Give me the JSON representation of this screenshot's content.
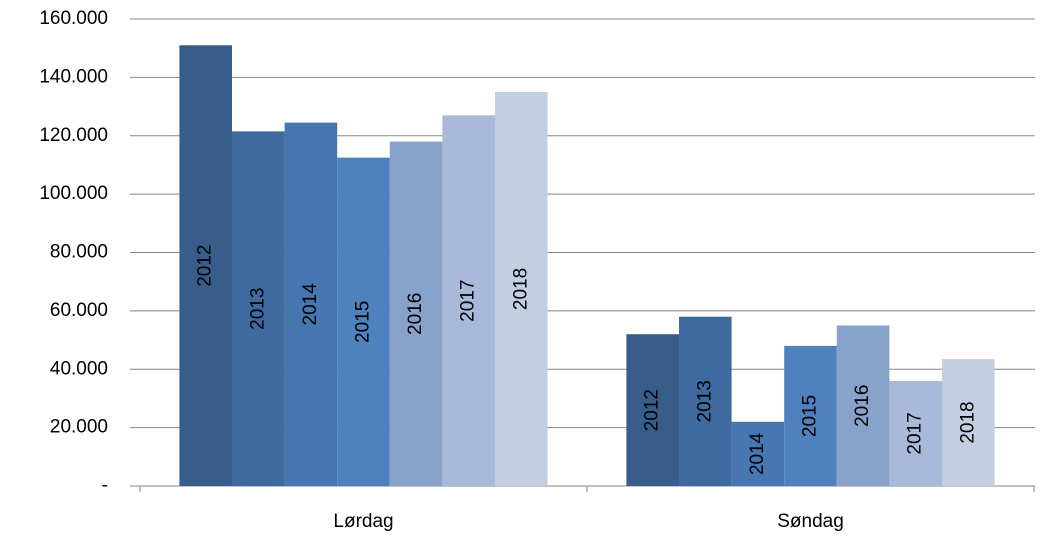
{
  "chart_data": {
    "type": "bar",
    "categories": [
      "Lørdag",
      "Søndag"
    ],
    "series": [
      {
        "name": "2012",
        "color": "#395d8a",
        "values": [
          151000,
          52000
        ]
      },
      {
        "name": "2013",
        "color": "#3e6aa0",
        "values": [
          121500,
          58000
        ]
      },
      {
        "name": "2014",
        "color": "#4677b0",
        "values": [
          124500,
          22000
        ]
      },
      {
        "name": "2015",
        "color": "#4f81bd",
        "values": [
          112500,
          48000
        ]
      },
      {
        "name": "2016",
        "color": "#87a2cb",
        "values": [
          118000,
          55000
        ]
      },
      {
        "name": "2017",
        "color": "#a9b9d9",
        "values": [
          127000,
          36000
        ]
      },
      {
        "name": "2018",
        "color": "#c3cee3",
        "values": [
          135000,
          43500
        ]
      }
    ],
    "ylim": [
      0,
      160000
    ],
    "yticks": [
      {
        "value": 0,
        "label": "-"
      },
      {
        "value": 20000,
        "label": "20.000"
      },
      {
        "value": 40000,
        "label": "40.000"
      },
      {
        "value": 60000,
        "label": "60.000"
      },
      {
        "value": 80000,
        "label": "80.000"
      },
      {
        "value": 100000,
        "label": "100.000"
      },
      {
        "value": 120000,
        "label": "120.000"
      },
      {
        "value": 140000,
        "label": "140.000"
      },
      {
        "value": 160000,
        "label": "160.000"
      }
    ],
    "grid": true
  }
}
